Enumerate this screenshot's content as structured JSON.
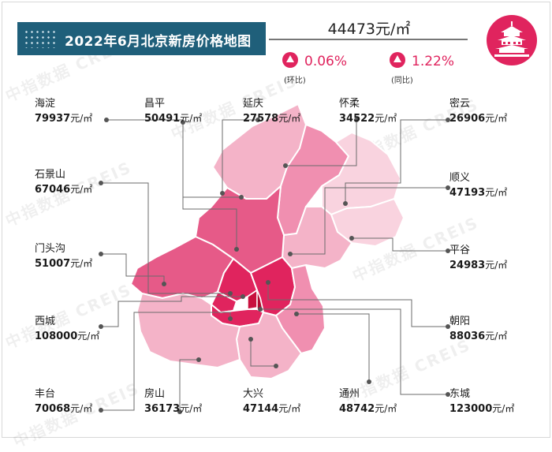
{
  "title": "2022年6月北京新房价格地图",
  "average_price": "44473元/㎡",
  "change_mom": {
    "value": "0.06%",
    "label": "(环比)"
  },
  "change_yoy": {
    "value": "1.22%",
    "label": "(同比)"
  },
  "watermark": "中指数据 CREIS",
  "colors": {
    "title_bg": "#1f5f7a",
    "accent": "#e0245e",
    "dark": "#d0174f",
    "mid": "#e65a88",
    "light": "#f08fb0",
    "lighter": "#f4b3c8",
    "lightest": "#f9d3df"
  },
  "districts": [
    {
      "name": "海淀",
      "price": "79937",
      "unit": "元/㎡"
    },
    {
      "name": "昌平",
      "price": "50491",
      "unit": "元/㎡"
    },
    {
      "name": "延庆",
      "price": "27578",
      "unit": "元/㎡"
    },
    {
      "name": "怀柔",
      "price": "34522",
      "unit": "元/㎡"
    },
    {
      "name": "密云",
      "price": "26906",
      "unit": "元/㎡"
    },
    {
      "name": "石景山",
      "price": "67046",
      "unit": "元/㎡"
    },
    {
      "name": "顺义",
      "price": "47193",
      "unit": "元/㎡"
    },
    {
      "name": "门头沟",
      "price": "51007",
      "unit": "元/㎡"
    },
    {
      "name": "平谷",
      "price": "24983",
      "unit": "元/㎡"
    },
    {
      "name": "西城",
      "price": "108000",
      "unit": "元/㎡"
    },
    {
      "name": "朝阳",
      "price": "88036",
      "unit": "元/㎡"
    },
    {
      "name": "丰台",
      "price": "70068",
      "unit": "元/㎡"
    },
    {
      "name": "房山",
      "price": "36173",
      "unit": "元/㎡"
    },
    {
      "name": "大兴",
      "price": "47144",
      "unit": "元/㎡"
    },
    {
      "name": "通州",
      "price": "48742",
      "unit": "元/㎡"
    },
    {
      "name": "东城",
      "price": "123000",
      "unit": "元/㎡"
    }
  ]
}
